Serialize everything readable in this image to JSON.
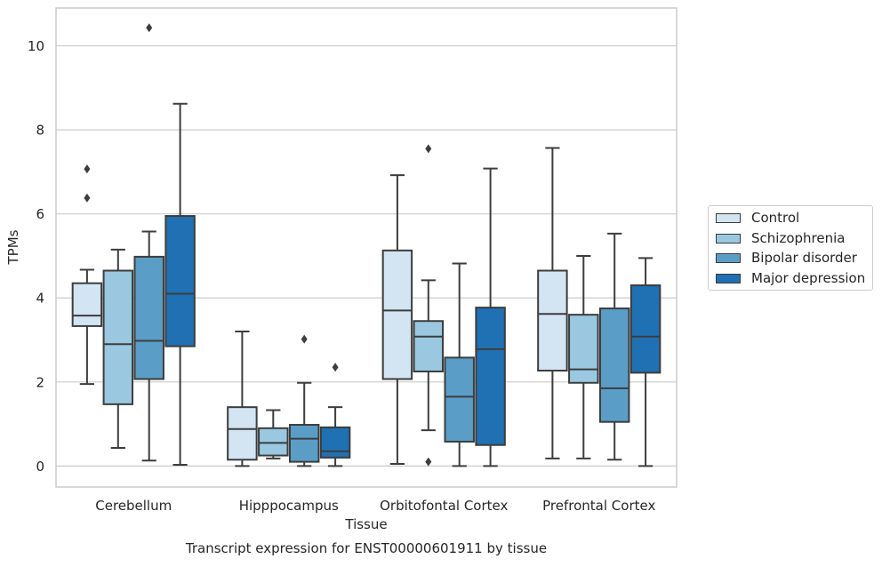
{
  "chart_data": {
    "type": "box",
    "title": "Transcript expression for ENST00000601911 by tissue",
    "xlabel": "Tissue",
    "ylabel": "TPMs",
    "ylim": [
      -0.5,
      10.9
    ],
    "yticks": [
      0,
      2,
      4,
      6,
      8,
      10
    ],
    "categories": [
      "Cerebellum",
      "Hipppocampus",
      "Orbitofontal Cortex",
      "Prefrontal Cortex"
    ],
    "grid": true,
    "legend_position": "right",
    "series": [
      {
        "name": "Control",
        "color": "#d3e4f3",
        "boxes": [
          {
            "whislo": 1.95,
            "q1": 3.33,
            "med": 3.58,
            "q3": 4.35,
            "whishi": 4.67,
            "fliers": [
              6.38,
              7.07
            ]
          },
          {
            "whislo": 0.0,
            "q1": 0.15,
            "med": 0.88,
            "q3": 1.4,
            "whishi": 3.2,
            "fliers": []
          },
          {
            "whislo": 0.05,
            "q1": 2.07,
            "med": 3.7,
            "q3": 5.13,
            "whishi": 6.92,
            "fliers": []
          },
          {
            "whislo": 0.18,
            "q1": 2.27,
            "med": 3.62,
            "q3": 4.65,
            "whishi": 7.57,
            "fliers": []
          }
        ]
      },
      {
        "name": "Schizophrenia",
        "color": "#9ac8e0",
        "boxes": [
          {
            "whislo": 0.43,
            "q1": 1.47,
            "med": 2.9,
            "q3": 4.65,
            "whishi": 5.15,
            "fliers": []
          },
          {
            "whislo": 0.18,
            "q1": 0.25,
            "med": 0.55,
            "q3": 0.9,
            "whishi": 1.33,
            "fliers": []
          },
          {
            "whislo": 0.85,
            "q1": 2.25,
            "med": 3.08,
            "q3": 3.45,
            "whishi": 4.42,
            "fliers": [
              0.1,
              7.55
            ]
          },
          {
            "whislo": 0.18,
            "q1": 1.98,
            "med": 2.3,
            "q3": 3.6,
            "whishi": 5.0,
            "fliers": []
          }
        ]
      },
      {
        "name": "Bipolar disorder",
        "color": "#5a9ec8",
        "boxes": [
          {
            "whislo": 0.13,
            "q1": 2.07,
            "med": 2.98,
            "q3": 4.98,
            "whishi": 5.58,
            "fliers": [
              10.43
            ]
          },
          {
            "whislo": 0.0,
            "q1": 0.1,
            "med": 0.65,
            "q3": 0.98,
            "whishi": 1.98,
            "fliers": [
              3.02
            ]
          },
          {
            "whislo": 0.0,
            "q1": 0.58,
            "med": 1.65,
            "q3": 2.58,
            "whishi": 4.82,
            "fliers": []
          },
          {
            "whislo": 0.15,
            "q1": 1.05,
            "med": 1.85,
            "q3": 3.75,
            "whishi": 5.53,
            "fliers": []
          }
        ]
      },
      {
        "name": "Major depression",
        "color": "#2070b4",
        "boxes": [
          {
            "whislo": 0.03,
            "q1": 2.85,
            "med": 4.1,
            "q3": 5.95,
            "whishi": 8.62,
            "fliers": []
          },
          {
            "whislo": 0.0,
            "q1": 0.2,
            "med": 0.35,
            "q3": 0.92,
            "whishi": 1.4,
            "fliers": [
              2.35
            ]
          },
          {
            "whislo": 0.0,
            "q1": 0.5,
            "med": 2.78,
            "q3": 3.77,
            "whishi": 7.08,
            "fliers": []
          },
          {
            "whislo": 0.0,
            "q1": 2.22,
            "med": 3.08,
            "q3": 4.3,
            "whishi": 4.95,
            "fliers": []
          }
        ]
      }
    ]
  }
}
